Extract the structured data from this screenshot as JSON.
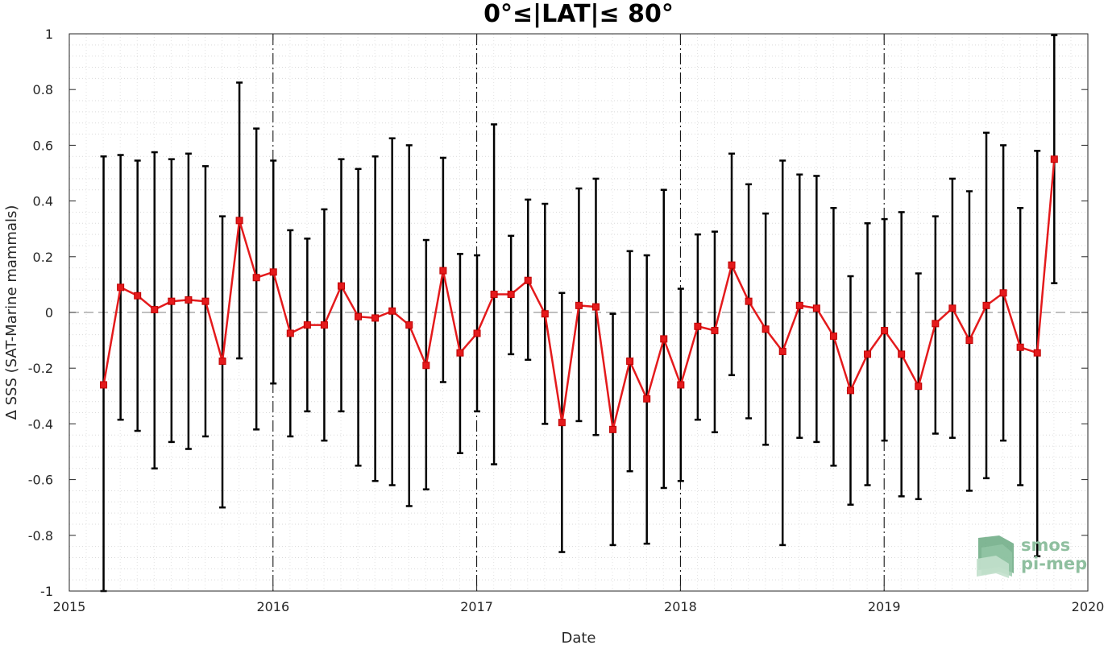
{
  "chart_data": {
    "type": "line",
    "title": "0°≤|LAT|≤ 80°",
    "xlabel": "Date",
    "ylabel": "Δ SSS (SAT-Marine mammals)",
    "xlim": [
      "2015-01-01",
      "2020-01-01"
    ],
    "ylim": [
      -1,
      1
    ],
    "x_ticks": [
      "2015",
      "2016",
      "2017",
      "2018",
      "2019",
      "2020"
    ],
    "y_ticks": [
      "-1",
      "-0.8",
      "-0.6",
      "-0.4",
      "-0.2",
      "0",
      "0.2",
      "0.4",
      "0.6",
      "0.8",
      "1"
    ],
    "grid": "minor-dotted",
    "reference_line": 0,
    "year_markers": [
      "2016",
      "2017",
      "2018",
      "2019"
    ],
    "colors": {
      "series": "#e41a1c",
      "errorbar": "#000000",
      "reference": "#808080",
      "logo": "#7fb48f"
    },
    "series": [
      {
        "x": [
          "2015-03",
          "2015-04",
          "2015-05",
          "2015-06",
          "2015-07",
          "2015-08",
          "2015-09",
          "2015-10",
          "2015-11",
          "2015-12",
          "2016-01",
          "2016-02",
          "2016-03",
          "2016-04",
          "2016-05",
          "2016-06",
          "2016-07",
          "2016-08",
          "2016-09",
          "2016-10",
          "2016-11",
          "2016-12",
          "2017-01",
          "2017-02",
          "2017-03",
          "2017-04",
          "2017-05",
          "2017-06",
          "2017-07",
          "2017-08",
          "2017-09",
          "2017-10",
          "2017-11",
          "2017-12",
          "2018-01",
          "2018-02",
          "2018-03",
          "2018-04",
          "2018-05",
          "2018-06",
          "2018-07",
          "2018-08",
          "2018-09",
          "2018-10",
          "2018-11",
          "2018-12",
          "2019-01",
          "2019-02",
          "2019-03",
          "2019-04",
          "2019-05",
          "2019-06",
          "2019-07",
          "2019-08",
          "2019-09",
          "2019-10",
          "2019-11"
        ],
        "y": [
          -0.26,
          0.09,
          0.06,
          0.01,
          0.04,
          0.045,
          0.04,
          -0.175,
          0.33,
          0.125,
          0.145,
          -0.075,
          -0.045,
          -0.045,
          0.095,
          -0.015,
          -0.02,
          0.005,
          -0.045,
          -0.19,
          0.15,
          -0.145,
          -0.075,
          0.065,
          0.065,
          0.115,
          -0.005,
          -0.395,
          0.025,
          0.02,
          -0.42,
          -0.175,
          -0.31,
          -0.095,
          -0.26,
          -0.05,
          -0.065,
          0.17,
          0.04,
          -0.06,
          -0.14,
          0.025,
          0.015,
          -0.085,
          -0.28,
          -0.15,
          -0.065,
          -0.15,
          -0.265,
          -0.04,
          0.015,
          -0.1,
          0.025,
          0.07,
          -0.125,
          -0.145,
          0.55
        ],
        "lower": [
          -1.0,
          -0.385,
          -0.425,
          -0.56,
          -0.465,
          -0.49,
          -0.445,
          -0.7,
          -0.165,
          -0.42,
          -0.255,
          -0.445,
          -0.355,
          -0.46,
          -0.355,
          -0.55,
          -0.605,
          -0.62,
          -0.695,
          -0.635,
          -0.25,
          -0.505,
          -0.355,
          -0.545,
          -0.15,
          -0.17,
          -0.4,
          -0.86,
          -0.39,
          -0.44,
          -0.835,
          -0.57,
          -0.83,
          -0.63,
          -0.605,
          -0.385,
          -0.43,
          -0.225,
          -0.38,
          -0.475,
          -0.835,
          -0.45,
          -0.465,
          -0.55,
          -0.69,
          -0.62,
          -0.46,
          -0.66,
          -0.67,
          -0.435,
          -0.45,
          -0.64,
          -0.595,
          -0.46,
          -0.62,
          -0.875,
          0.105
        ],
        "upper": [
          0.56,
          0.565,
          0.545,
          0.575,
          0.55,
          0.57,
          0.525,
          0.345,
          0.825,
          0.66,
          0.545,
          0.295,
          0.265,
          0.37,
          0.55,
          0.515,
          0.56,
          0.625,
          0.6,
          0.26,
          0.555,
          0.21,
          0.205,
          0.675,
          0.275,
          0.405,
          0.39,
          0.07,
          0.445,
          0.48,
          -0.005,
          0.22,
          0.205,
          0.44,
          0.085,
          0.28,
          0.29,
          0.57,
          0.46,
          0.355,
          0.545,
          0.495,
          0.49,
          0.375,
          0.13,
          0.32,
          0.335,
          0.36,
          0.14,
          0.345,
          0.48,
          0.435,
          0.645,
          0.6,
          0.375,
          0.58,
          0.995
        ]
      }
    ]
  },
  "logo": {
    "line1": "smos",
    "line2": "pi-mep"
  }
}
